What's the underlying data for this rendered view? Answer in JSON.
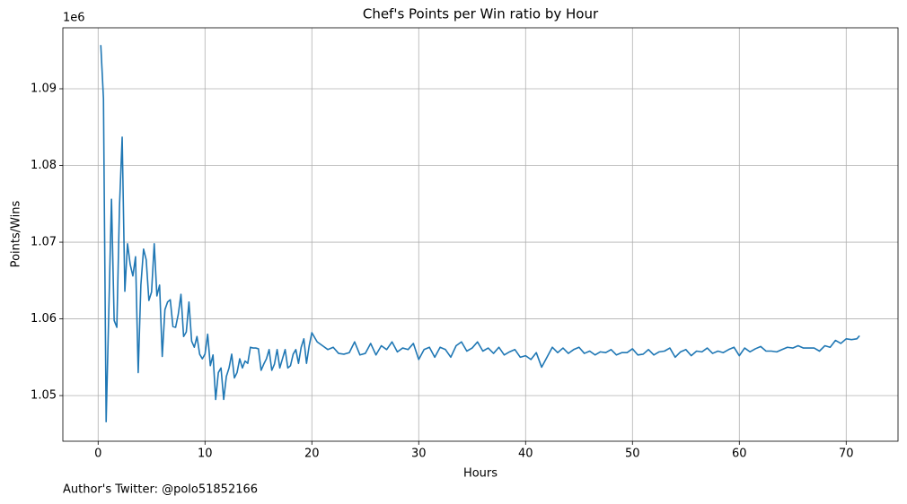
{
  "chart_data": {
    "type": "line",
    "title": "Chef's Points per Win ratio by Hour",
    "x_label": "Hours",
    "y_label": "Points/Wins",
    "y_offset_label": "1e6",
    "footnote": "Author's Twitter: @polo51852166",
    "color": "#1f77b4",
    "grid": true,
    "xlim": [
      -3.3,
      74.85
    ],
    "ylim": [
      1.04405,
      1.09795
    ],
    "xticks": [
      0,
      10,
      20,
      30,
      40,
      50,
      60,
      70
    ],
    "yticks": [
      1.05,
      1.06,
      1.07,
      1.08,
      1.09
    ],
    "x": [
      0.25,
      0.5,
      0.75,
      1.0,
      1.25,
      1.5,
      1.75,
      2.0,
      2.25,
      2.5,
      2.75,
      3.0,
      3.25,
      3.5,
      3.75,
      4.0,
      4.25,
      4.5,
      4.75,
      5.0,
      5.25,
      5.5,
      5.75,
      6.0,
      6.25,
      6.5,
      6.75,
      7.0,
      7.25,
      7.5,
      7.75,
      8.0,
      8.25,
      8.5,
      8.75,
      9.0,
      9.25,
      9.5,
      9.75,
      10.0,
      10.25,
      10.5,
      10.75,
      11.0,
      11.25,
      11.5,
      11.75,
      12.0,
      12.25,
      12.5,
      12.75,
      13.0,
      13.25,
      13.5,
      13.75,
      14.0,
      14.25,
      14.5,
      14.75,
      15.0,
      15.25,
      15.5,
      15.75,
      16.0,
      16.25,
      16.5,
      16.75,
      17.0,
      17.25,
      17.5,
      17.75,
      18.0,
      18.25,
      18.5,
      18.75,
      19.0,
      19.25,
      19.5,
      19.75,
      20.0,
      20.5,
      21,
      21.5,
      22,
      22.5,
      23,
      23.5,
      24,
      24.5,
      25,
      25.5,
      26,
      26.5,
      27,
      27.5,
      28,
      28.5,
      29,
      29.5,
      30,
      30.5,
      31,
      31.5,
      32,
      32.5,
      33,
      33.5,
      34,
      34.5,
      35,
      35.5,
      36,
      36.5,
      37,
      37.5,
      38,
      38.5,
      39,
      39.5,
      40,
      40.5,
      41,
      41.5,
      42,
      42.5,
      43,
      43.5,
      44,
      44.5,
      45,
      45.5,
      46,
      46.5,
      47,
      47.5,
      48,
      48.5,
      49,
      49.5,
      50,
      50.5,
      51,
      51.5,
      52,
      52.5,
      53,
      53.5,
      54,
      54.5,
      55,
      55.5,
      56,
      56.5,
      57,
      57.5,
      58,
      58.5,
      59,
      59.5,
      60,
      60.5,
      61,
      61.5,
      62,
      62.5,
      63,
      63.5,
      64,
      64.5,
      65,
      65.5,
      66,
      66.5,
      67,
      67.5,
      68,
      68.5,
      69,
      69.5,
      70,
      70.5,
      71,
      71.25
    ],
    "values": [
      1.0957,
      1.0887,
      1.0466,
      1.061,
      1.0756,
      1.0598,
      1.0589,
      1.0747,
      1.0837,
      1.0636,
      1.0698,
      1.0671,
      1.0656,
      1.0681,
      1.053,
      1.0644,
      1.0691,
      1.0677,
      1.0624,
      1.0635,
      1.0698,
      1.063,
      1.0644,
      1.0551,
      1.0612,
      1.0622,
      1.0625,
      1.059,
      1.0589,
      1.0606,
      1.0632,
      1.0577,
      1.0583,
      1.0622,
      1.0571,
      1.0563,
      1.0577,
      1.0554,
      1.0548,
      1.0554,
      1.058,
      1.0539,
      1.0553,
      1.0495,
      1.053,
      1.0536,
      1.0495,
      1.0525,
      1.0536,
      1.0554,
      1.0523,
      1.053,
      1.0548,
      1.0536,
      1.0545,
      1.0542,
      1.0563,
      1.0562,
      1.0562,
      1.0561,
      1.0533,
      1.0541,
      1.0548,
      1.056,
      1.0533,
      1.0541,
      1.056,
      1.0536,
      1.0548,
      1.056,
      1.0536,
      1.0539,
      1.0554,
      1.056,
      1.0542,
      1.0563,
      1.0574,
      1.0542,
      1.0565,
      1.0582,
      1.057,
      1.0565,
      1.056,
      1.0563,
      1.0555,
      1.0554,
      1.0556,
      1.057,
      1.0553,
      1.0555,
      1.0568,
      1.0553,
      1.0565,
      1.056,
      1.057,
      1.0557,
      1.0562,
      1.056,
      1.0568,
      1.0547,
      1.056,
      1.0563,
      1.055,
      1.0563,
      1.056,
      1.055,
      1.0565,
      1.057,
      1.0558,
      1.0562,
      1.057,
      1.0558,
      1.0562,
      1.0555,
      1.0563,
      1.0553,
      1.0557,
      1.056,
      1.055,
      1.0552,
      1.0547,
      1.0556,
      1.0537,
      1.055,
      1.0563,
      1.0556,
      1.0562,
      1.0555,
      1.056,
      1.0563,
      1.0555,
      1.0558,
      1.0553,
      1.0557,
      1.0556,
      1.056,
      1.0553,
      1.0556,
      1.0556,
      1.0561,
      1.0553,
      1.0554,
      1.056,
      1.0553,
      1.0557,
      1.0558,
      1.0562,
      1.055,
      1.0557,
      1.056,
      1.0552,
      1.0558,
      1.0557,
      1.0562,
      1.0555,
      1.0558,
      1.0556,
      1.056,
      1.0563,
      1.0552,
      1.0562,
      1.0557,
      1.0561,
      1.0564,
      1.0558,
      1.0558,
      1.0557,
      1.056,
      1.0563,
      1.0562,
      1.0565,
      1.0562,
      1.0562,
      1.0562,
      1.0558,
      1.0565,
      1.0563,
      1.0572,
      1.0568,
      1.0574,
      1.0573,
      1.0574,
      1.0578
    ]
  }
}
